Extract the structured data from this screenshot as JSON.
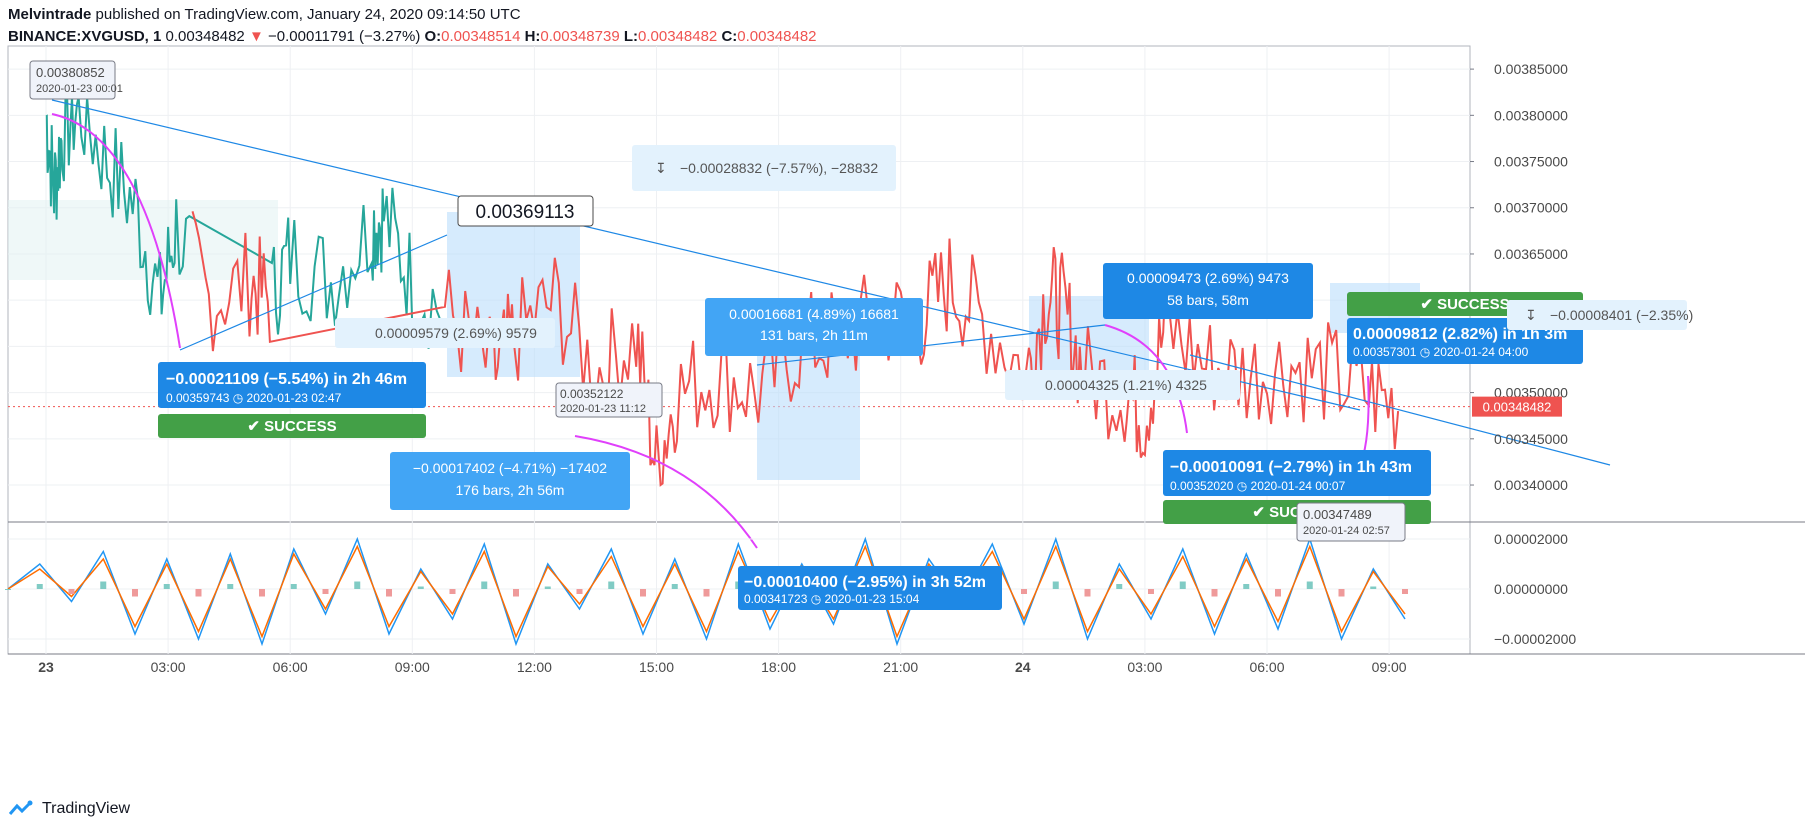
{
  "header": {
    "author": "Melvintrade",
    "published": " published on TradingView.com, January 24, 2020 09:14:50 UTC",
    "symbol": "BINANCE:XVGUSD, 1",
    "last": "0.00348482",
    "change": "−0.00011791 (−3.27%)",
    "o_label": "O:",
    "o": "0.00348514",
    "h_label": "H:",
    "h": "0.00348739",
    "l_label": "L:",
    "l": "0.00348482",
    "c_label": "C:",
    "c": "0.00348482"
  },
  "footer": {
    "brand": "TradingView"
  },
  "colors": {
    "up": "#26a69a",
    "down": "#ef5350",
    "tool": "#1e88e5",
    "success": "#43a047",
    "arrow": "#e040fb",
    "macd": "#2196f3",
    "signal": "#ff6d00"
  },
  "chart_data": [
    {
      "type": "line",
      "title": "",
      "time_ticks": [
        "23",
        "03:00",
        "06:00",
        "09:00",
        "12:00",
        "15:00",
        "18:00",
        "21:00",
        "24",
        "03:00",
        "06:00",
        "09:00"
      ],
      "y_ticks": [
        "0.00385000",
        "0.00380000",
        "0.00375000",
        "0.00370000",
        "0.00365000",
        "0.00360000",
        "0.00355000",
        "0.00350000",
        "0.00345000",
        "0.00340000"
      ],
      "ylim": [
        0.00336,
        0.003875
      ],
      "last_price_label": "0.00348482",
      "price_path_hours": [
        0,
        0.2,
        0.4,
        0.8,
        1.5,
        2.2,
        2.8,
        3.2,
        4,
        5,
        5.5,
        6,
        7,
        8,
        8.3,
        9,
        10,
        11,
        11.5,
        12.5,
        13.5,
        14.5,
        15.0,
        15.5,
        16.5,
        17.5,
        18.5,
        19.5,
        20.5,
        21.5,
        22.2,
        23.0,
        24.1,
        24.6,
        25.0,
        25.5,
        26.5,
        27.0,
        27.5,
        28.5,
        29.5,
        30.5,
        31.5,
        32.5,
        33.3
      ],
      "price_path_values": [
        0.0038,
        0.00372,
        0.00378,
        0.00380852,
        0.00375,
        0.0037,
        0.00359743,
        0.00368,
        0.0036,
        0.00362,
        0.0036,
        0.00365,
        0.00362,
        0.00368,
        0.00369113,
        0.00362,
        0.00358,
        0.00352,
        0.00356,
        0.0036,
        0.00352,
        0.00356,
        0.00341723,
        0.0035,
        0.00352,
        0.0035,
        0.00355,
        0.00356,
        0.00358,
        0.00358,
        0.00362,
        0.00358,
        0.0035202,
        0.00361,
        0.00359,
        0.00352,
        0.0035,
        0.00347489,
        0.00357301,
        0.00353,
        0.00352,
        0.00353,
        0.00352,
        0.0035,
        0.00348482
      ],
      "annotations": [
        {
          "price": "0.00380852",
          "time": "2020-01-23 00:01"
        },
        {
          "price": "0.00369113"
        },
        {
          "text": "−0.00028832 (−7.57%), −28832"
        },
        {
          "text": "−0.00021109 (−5.54%) in 2h 46m",
          "sub": "0.00359743",
          "time": "2020-01-23  02:47",
          "status": "✔ SUCCESS"
        },
        {
          "text": "0.00009579 (2.69%) 9579"
        },
        {
          "text": "−0.00017402 (−4.71%) −17402",
          "sub": "176 bars, 2h 56m"
        },
        {
          "text": "0.00352122",
          "time": "2020-01-23 11:12"
        },
        {
          "text": "0.00016681 (4.89%) 16681",
          "sub": "131 bars, 2h 11m"
        },
        {
          "text": "−0.00010400 (−2.95%) in 3h 52m",
          "sub": "0.00341723",
          "time": "2020-01-23  15:04"
        },
        {
          "text": "0.00004325 (1.21%) 4325"
        },
        {
          "text": "0.00009473 (2.69%) 9473",
          "sub": "58 bars, 58m"
        },
        {
          "text": "−0.00010091 (−2.79%) in 1h 43m",
          "sub": "0.00352020",
          "time": "2020-01-24  00:07",
          "status": "✔ SUCCESS"
        },
        {
          "price": "0.00347489",
          "time": "2020-01-24 02:57"
        },
        {
          "text": "0.00009812 (2.82%) in 1h 3m",
          "sub": "0.00357301",
          "time": "2020-01-24  04:00",
          "status": "✔ SUCCESS"
        },
        {
          "text": "−0.00008401 (−2.35%)"
        }
      ]
    },
    {
      "type": "line",
      "title": "",
      "y_ticks": [
        "0.00002000",
        "0.00000000",
        "−0.00002000"
      ],
      "ylim": [
        -2.6e-05,
        2.6e-05
      ],
      "series": [
        {
          "values": [
            0,
            10,
            -5,
            15,
            -18,
            12,
            -20,
            14,
            -22,
            16,
            -10,
            20,
            -18,
            8,
            -12,
            18,
            -22,
            10,
            -8,
            16,
            -18,
            12,
            -20,
            18,
            -16,
            10,
            -14,
            20,
            -22,
            12,
            -6,
            18,
            -14,
            20,
            -20,
            10,
            -12,
            16,
            -18,
            14,
            -16,
            20,
            -20,
            8,
            -12
          ]
        },
        {
          "values": [
            0,
            8,
            -3,
            12,
            -15,
            10,
            -17,
            12,
            -19,
            14,
            -8,
            17,
            -15,
            7,
            -10,
            15,
            -19,
            9,
            -6,
            13,
            -15,
            10,
            -17,
            15,
            -13,
            9,
            -12,
            17,
            -19,
            10,
            -5,
            15,
            -12,
            17,
            -17,
            8,
            -10,
            13,
            -15,
            12,
            -13,
            17,
            -17,
            7,
            -10
          ]
        }
      ]
    }
  ]
}
